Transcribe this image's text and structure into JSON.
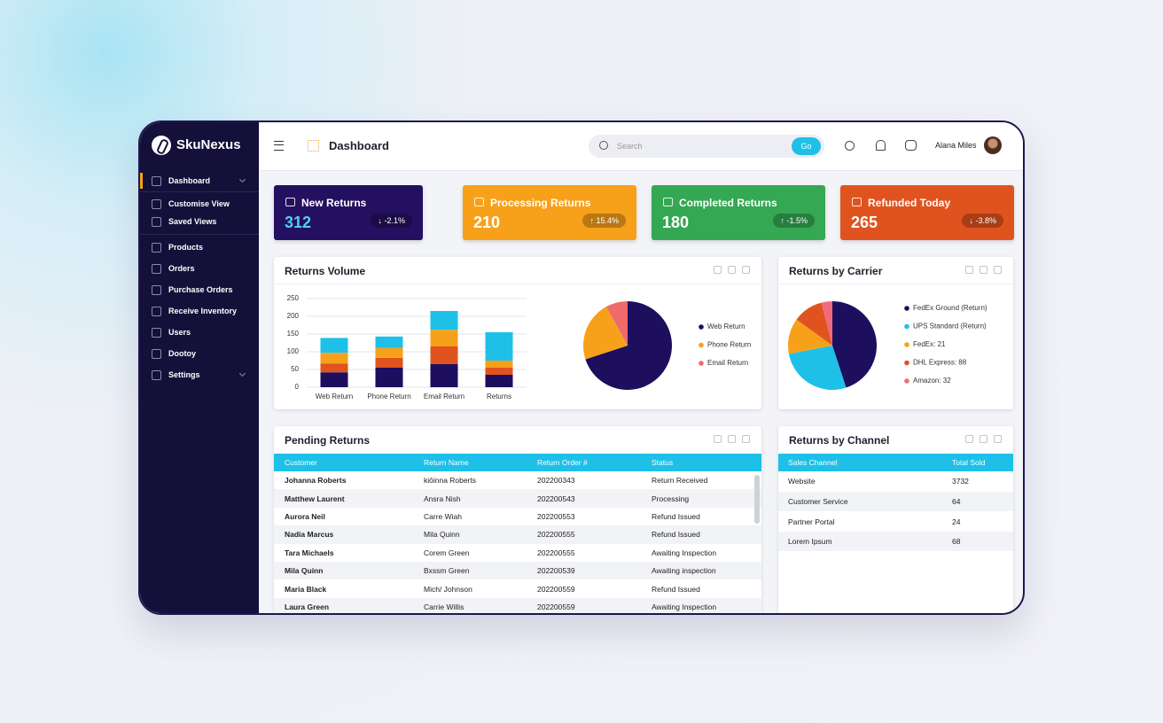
{
  "sidebar": {
    "brand": "SkuNexus",
    "nav": [
      "Dashboard",
      "Customise View",
      "Saved Views",
      "Products",
      "Orders",
      "Purchase Orders",
      "Receive Inventory",
      "Users",
      "Dootoy",
      "Settings"
    ]
  },
  "header": {
    "title": "Dashboard",
    "search_placeholder": "Search",
    "search_button": "Go",
    "user": "Alana Miles"
  },
  "kpis": [
    {
      "label": "New Returns",
      "value": 312,
      "change": "↓ -2.1%",
      "color": "#241060"
    },
    {
      "label": "Processing Returns",
      "value": 210,
      "change": "↑ 15.4%",
      "color": "#f7a11a"
    },
    {
      "label": "Completed Returns",
      "value": 180,
      "change": "↑ -1.5%",
      "color": "#34a853"
    },
    {
      "label": "Refunded Today",
      "value": 265,
      "change": "↓ -3.8%",
      "color": "#e0531f"
    }
  ],
  "chart_data": [
    {
      "type": "bar",
      "stacked": true,
      "title": "Returns Volume",
      "categories": [
        "Web Return",
        "Phone Return",
        "Email Return",
        "Returns"
      ],
      "series": [
        {
          "color": "#1e0e5e",
          "values": [
            42,
            55,
            65,
            35
          ]
        },
        {
          "color": "#e0531f",
          "values": [
            25,
            28,
            50,
            20
          ]
        },
        {
          "color": "#f7a11a",
          "values": [
            30,
            28,
            47,
            20
          ]
        },
        {
          "color": "#1ec0e8",
          "values": [
            42,
            32,
            53,
            80
          ]
        }
      ],
      "ylim": [
        0,
        250
      ],
      "yticks": [
        0,
        50,
        100,
        150,
        200,
        250
      ],
      "grid": true
    },
    {
      "type": "pie",
      "categories": [
        "Web Return",
        "Phone Return",
        "Email Return"
      ],
      "values": [
        70,
        22,
        8
      ],
      "colors": [
        "#1e0e5e",
        "#f7a11a",
        "#ef6b6b"
      ],
      "legend": "right"
    },
    {
      "type": "pie",
      "title": "Returns by Carrier",
      "categories": [
        "FedEx Ground (Return)",
        "UPS Standard (Return)",
        "FedEx: 21",
        "DHL Express: 88",
        "Amazon: 32"
      ],
      "values": [
        45,
        27,
        13,
        11,
        4
      ],
      "colors": [
        "#1e0e5e",
        "#1ec0e8",
        "#f7a11a",
        "#e0531f",
        "#ef6b7b"
      ],
      "legend": "right"
    }
  ],
  "tables": {
    "pending": {
      "title": "Pending Returns",
      "columns": [
        "Customer",
        "Return Name",
        "Return Order #",
        "Status"
      ],
      "rows": [
        [
          "Johanna Roberts",
          "kiōinna Roberts",
          "202200343",
          "Return Received"
        ],
        [
          "Matthew Laurent",
          "Ansra Nish",
          "202200543",
          "Processing"
        ],
        [
          "Aurora Neil",
          "Carre Wiah",
          "202200553",
          "Refund Issued"
        ],
        [
          "Nadia Marcus",
          "Mila Quinn",
          "202200555",
          "Refund Issued"
        ],
        [
          "Tara Michaels",
          "Corem Green",
          "202200555",
          "Awaiting Inspection"
        ],
        [
          "Mila Quinn",
          "Bxssm Green",
          "202200539",
          "Awaiting inspection"
        ],
        [
          "Maria Black",
          "Mich/ Johnson",
          "202200559",
          "Refund Issued"
        ],
        [
          "Laura Green",
          "Carrie Willis",
          "202200559",
          "Awaiting Inspection"
        ]
      ]
    },
    "channel": {
      "title": "Returns by Channel",
      "columns": [
        "Sales Channel",
        "Total Sold"
      ],
      "rows": [
        [
          "Website",
          3732
        ],
        [
          "Customer Service",
          64
        ],
        [
          "Partner Portal",
          24
        ],
        [
          "Lorem Ipsum",
          68
        ]
      ]
    }
  }
}
